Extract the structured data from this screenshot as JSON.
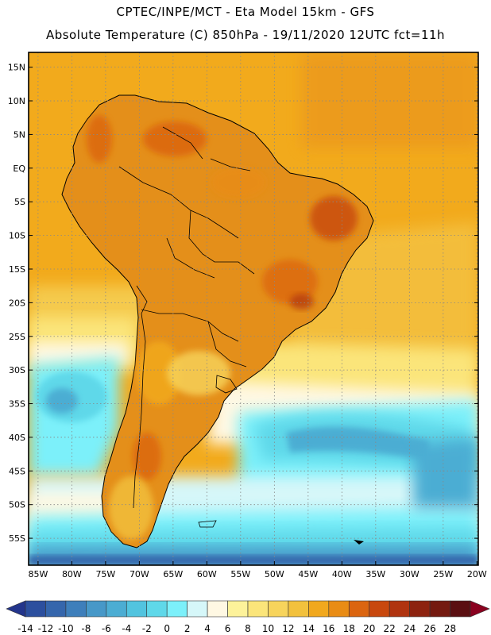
{
  "header": {
    "line1": "CPTEC/INPE/MCT -  Eta Model 15km - GFS",
    "line2": "Absolute Temperature (C) 850hPa - 19/11/2020 12UTC fct=11h"
  },
  "map": {
    "lat_labels": [
      "15N",
      "10N",
      "5N",
      "EQ",
      "5S",
      "10S",
      "15S",
      "20S",
      "25S",
      "30S",
      "35S",
      "40S",
      "45S",
      "50S",
      "55S"
    ],
    "lon_labels": [
      "85W",
      "80W",
      "75W",
      "70W",
      "65W",
      "60W",
      "55W",
      "50W",
      "45W",
      "40W",
      "35W",
      "30W",
      "25W",
      "20W"
    ],
    "ocean_color": "#f2aa1c",
    "land_color": "#e48f1a",
    "coastline_color": "#000000"
  },
  "legend": {
    "ticks": [
      "-14",
      "-12",
      "-10",
      "-8",
      "-6",
      "-4",
      "-2",
      "0",
      "2",
      "4",
      "6",
      "8",
      "10",
      "12",
      "14",
      "16",
      "18",
      "20",
      "22",
      "24",
      "26",
      "28"
    ],
    "colors": [
      "#23358c",
      "#2c4f9e",
      "#3566ac",
      "#3e7fbb",
      "#4798c8",
      "#4cadd3",
      "#52c4df",
      "#5fd8e9",
      "#7cf0fa",
      "#d6f7f9",
      "#fff8e3",
      "#fdf29a",
      "#fbe57a",
      "#f7d45c",
      "#f2c13d",
      "#f1a81e",
      "#e98c15",
      "#db6510",
      "#c8480e",
      "#b03410",
      "#8d2310",
      "#741a10",
      "#5a0f12",
      "#8a0220"
    ]
  }
}
